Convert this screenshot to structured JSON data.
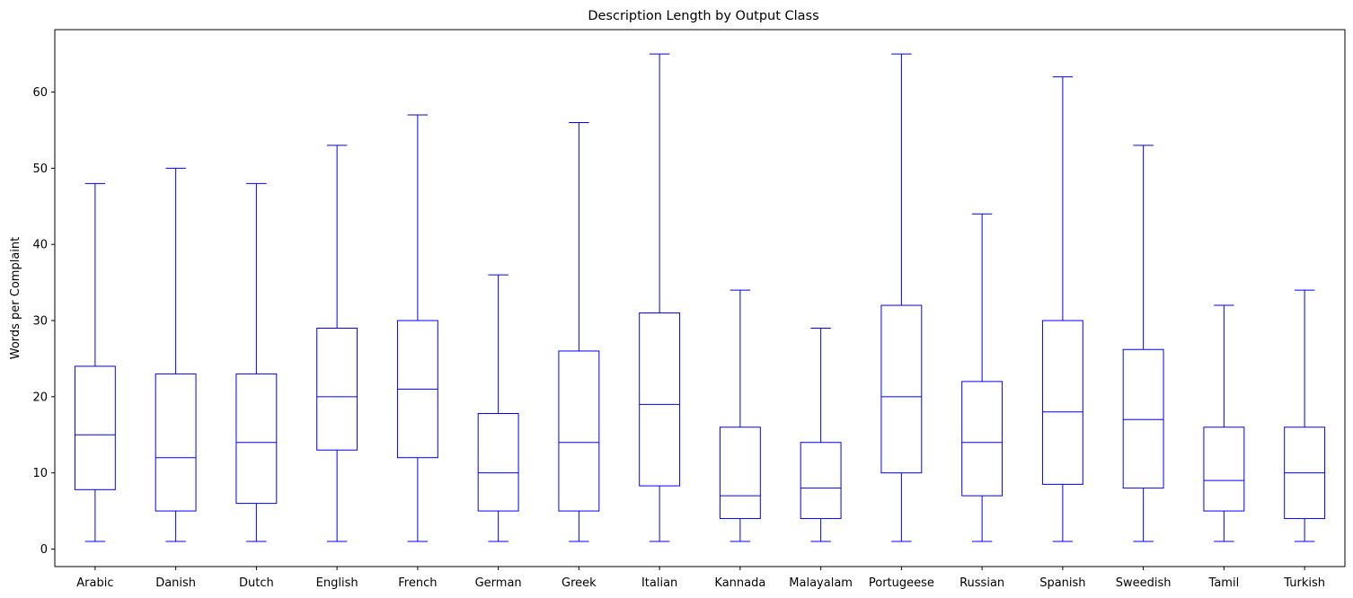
{
  "chart_data": {
    "type": "box",
    "title": "Description Length by Output Class",
    "xlabel": "",
    "ylabel": "Words per Complaint",
    "ylim": [
      -2.3,
      68.2
    ],
    "yticks": [
      0,
      10,
      20,
      30,
      40,
      50,
      60
    ],
    "grid": false,
    "legend": "none",
    "color": "#0000ff",
    "categories": [
      "Arabic",
      "Danish",
      "Dutch",
      "English",
      "French",
      "German",
      "Greek",
      "Italian",
      "Kannada",
      "Malayalam",
      "Portugeese",
      "Russian",
      "Spanish",
      "Sweedish",
      "Tamil",
      "Turkish"
    ],
    "boxes": [
      {
        "min": 1,
        "q1": 7.8,
        "median": 15,
        "q3": 24,
        "max": 48
      },
      {
        "min": 1,
        "q1": 5,
        "median": 12,
        "q3": 23,
        "max": 50
      },
      {
        "min": 1,
        "q1": 6,
        "median": 14,
        "q3": 23,
        "max": 48
      },
      {
        "min": 1,
        "q1": 13,
        "median": 20,
        "q3": 29,
        "max": 53
      },
      {
        "min": 1,
        "q1": 12,
        "median": 21,
        "q3": 30,
        "max": 57
      },
      {
        "min": 1,
        "q1": 5,
        "median": 10,
        "q3": 17.8,
        "max": 36
      },
      {
        "min": 1,
        "q1": 5,
        "median": 14,
        "q3": 26,
        "max": 56
      },
      {
        "min": 1,
        "q1": 8.3,
        "median": 19,
        "q3": 31,
        "max": 65
      },
      {
        "min": 1,
        "q1": 4,
        "median": 7,
        "q3": 16,
        "max": 34
      },
      {
        "min": 1,
        "q1": 4,
        "median": 8,
        "q3": 14,
        "max": 29
      },
      {
        "min": 1,
        "q1": 10,
        "median": 20,
        "q3": 32,
        "max": 65
      },
      {
        "min": 1,
        "q1": 7,
        "median": 14,
        "q3": 22,
        "max": 44
      },
      {
        "min": 1,
        "q1": 8.5,
        "median": 18,
        "q3": 30,
        "max": 62
      },
      {
        "min": 1,
        "q1": 8,
        "median": 17,
        "q3": 26.2,
        "max": 53
      },
      {
        "min": 1,
        "q1": 5,
        "median": 9,
        "q3": 16,
        "max": 32
      },
      {
        "min": 1,
        "q1": 4,
        "median": 10,
        "q3": 16,
        "max": 34
      }
    ]
  }
}
